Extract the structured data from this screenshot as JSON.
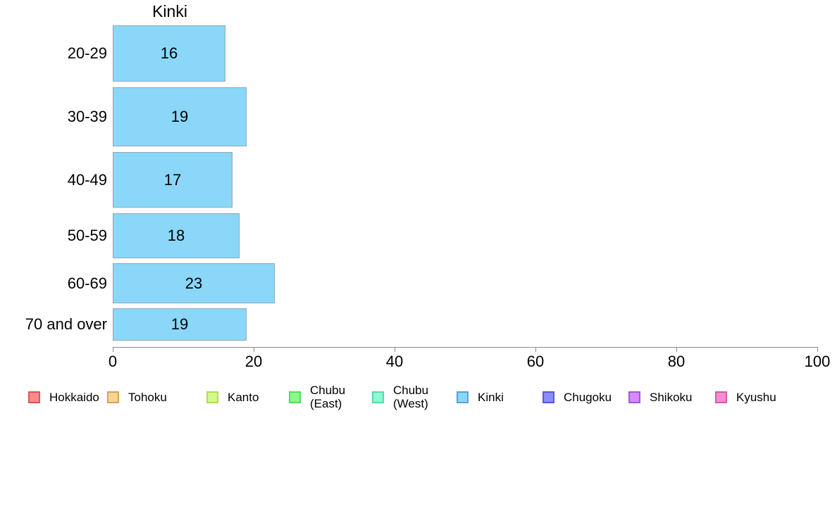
{
  "chart_data": {
    "type": "bar",
    "orientation": "horizontal",
    "title": "Kinki",
    "categories": [
      "20-29",
      "30-39",
      "40-49",
      "50-59",
      "60-69",
      "70 and over"
    ],
    "values": [
      16,
      19,
      17,
      18,
      23,
      19
    ],
    "xlabel": "",
    "ylabel": "",
    "xlim": [
      0,
      100
    ],
    "xticks": [
      "0",
      "20",
      "40",
      "60",
      "80",
      "100"
    ],
    "grid": false,
    "bar_fill": "#8AD7F9",
    "bar_edge": "#95A6B0",
    "axis_color": "#8A8A8A",
    "value_labels_inside_bars": true,
    "legend": {
      "position": "bottom",
      "items": [
        {
          "label": "Hokkaido",
          "fill": "#F98B8B",
          "edge": "#DB5757"
        },
        {
          "label": "Tohoku",
          "fill": "#F9D58B",
          "edge": "#DBA157"
        },
        {
          "label": "Kanto",
          "fill": "#D5F98B",
          "edge": "#B3DB57"
        },
        {
          "label": "Chubu\n(East)",
          "fill": "#8BF98B",
          "edge": "#57DB57"
        },
        {
          "label": "Chubu\n(West)",
          "fill": "#8BF9D5",
          "edge": "#57DBA1"
        },
        {
          "label": "Kinki",
          "fill": "#8AD7F9",
          "edge": "#57A1DB"
        },
        {
          "label": "Chugoku",
          "fill": "#8B8BF9",
          "edge": "#5757DB"
        },
        {
          "label": "Shikoku",
          "fill": "#D58BF9",
          "edge": "#A157DB"
        },
        {
          "label": "Kyushu",
          "fill": "#F98BD5",
          "edge": "#DB57A1"
        }
      ]
    }
  }
}
